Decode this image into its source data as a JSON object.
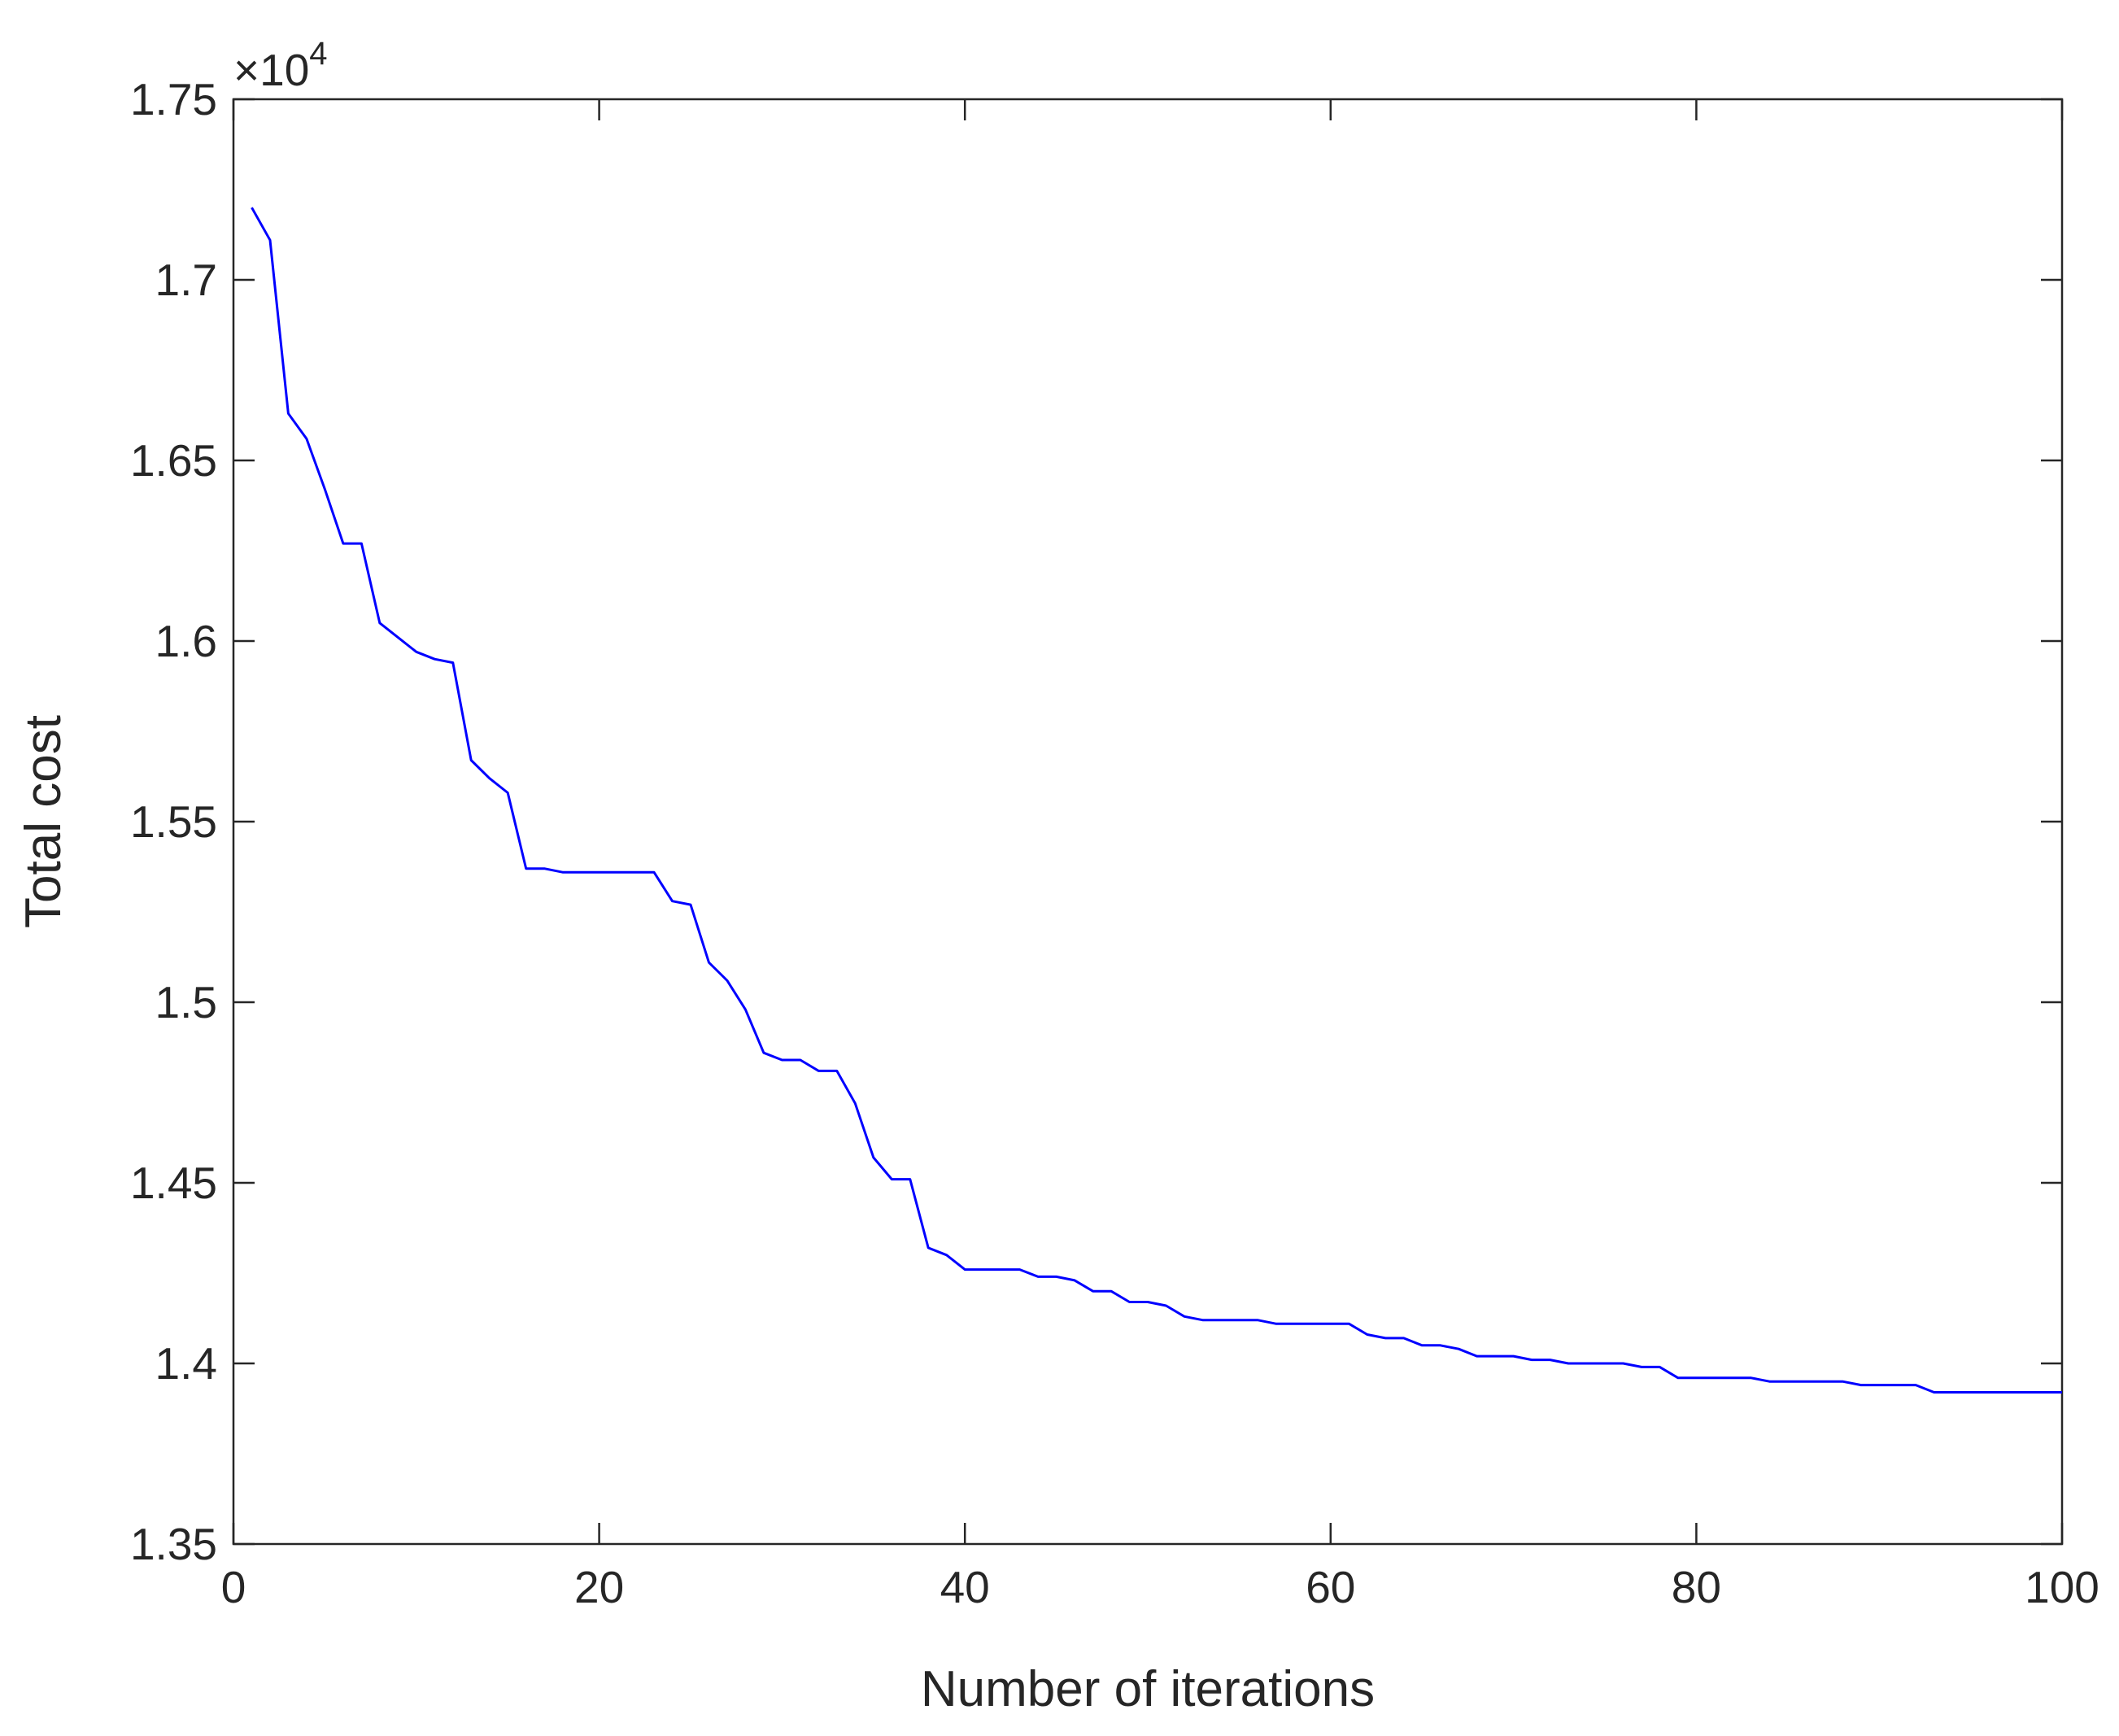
{
  "chart_data": {
    "type": "line",
    "title": "",
    "xlabel": "Number of iterations",
    "ylabel": "Total cost",
    "y_multiplier": {
      "symbol": "×10",
      "exponent": "4"
    },
    "xlim": [
      0,
      100
    ],
    "ylim": [
      1.35,
      1.75
    ],
    "x_ticks": [
      0,
      20,
      40,
      60,
      80,
      100
    ],
    "x_tick_labels": [
      "0",
      "20",
      "40",
      "60",
      "80",
      "100"
    ],
    "y_ticks": [
      1.35,
      1.4,
      1.45,
      1.5,
      1.55,
      1.6,
      1.65,
      1.7,
      1.75
    ],
    "y_tick_labels": [
      "1.35",
      "1.4",
      "1.45",
      "1.5",
      "1.55",
      "1.6",
      "1.65",
      "1.7",
      "1.75"
    ],
    "grid": false,
    "line_color": "#0000ff",
    "series": [
      {
        "x": [
          1,
          2,
          3,
          4,
          5,
          6,
          7,
          8,
          9,
          10,
          11,
          12,
          13,
          14,
          15,
          16,
          17,
          18,
          19,
          20,
          21,
          22,
          23,
          24,
          25,
          26,
          27,
          28,
          29,
          30,
          31,
          32,
          33,
          34,
          35,
          36,
          37,
          38,
          39,
          40,
          41,
          42,
          43,
          44,
          45,
          46,
          47,
          48,
          49,
          50,
          51,
          52,
          53,
          54,
          55,
          56,
          57,
          58,
          59,
          60,
          61,
          62,
          63,
          64,
          65,
          66,
          67,
          68,
          69,
          70,
          71,
          72,
          73,
          74,
          75,
          76,
          77,
          78,
          79,
          80,
          81,
          82,
          83,
          84,
          85,
          86,
          87,
          88,
          89,
          90,
          91,
          92,
          93,
          94,
          95,
          96,
          97,
          98,
          99,
          100
        ],
        "values": [
          1.72,
          1.711,
          1.663,
          1.656,
          1.642,
          1.627,
          1.627,
          1.605,
          1.601,
          1.597,
          1.595,
          1.594,
          1.567,
          1.562,
          1.558,
          1.537,
          1.537,
          1.536,
          1.536,
          1.536,
          1.536,
          1.536,
          1.536,
          1.528,
          1.527,
          1.511,
          1.506,
          1.498,
          1.486,
          1.484,
          1.484,
          1.481,
          1.481,
          1.472,
          1.457,
          1.451,
          1.451,
          1.432,
          1.43,
          1.426,
          1.426,
          1.426,
          1.426,
          1.424,
          1.424,
          1.423,
          1.42,
          1.42,
          1.417,
          1.417,
          1.416,
          1.413,
          1.412,
          1.412,
          1.412,
          1.412,
          1.411,
          1.411,
          1.411,
          1.411,
          1.411,
          1.408,
          1.407,
          1.407,
          1.405,
          1.405,
          1.404,
          1.402,
          1.402,
          1.402,
          1.401,
          1.401,
          1.4,
          1.4,
          1.4,
          1.4,
          1.399,
          1.399,
          1.396,
          1.396,
          1.396,
          1.396,
          1.396,
          1.395,
          1.395,
          1.395,
          1.395,
          1.395,
          1.394,
          1.394,
          1.394,
          1.394,
          1.392,
          1.392,
          1.392,
          1.392,
          1.392,
          1.392,
          1.392,
          1.392
        ]
      }
    ]
  }
}
